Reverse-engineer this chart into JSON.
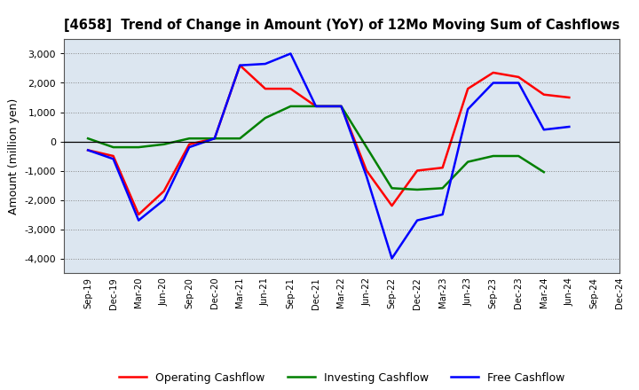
{
  "title": "[4658]  Trend of Change in Amount (YoY) of 12Mo Moving Sum of Cashflows",
  "ylabel": "Amount (million yen)",
  "xlabels": [
    "Sep-19",
    "Dec-19",
    "Mar-20",
    "Jun-20",
    "Sep-20",
    "Dec-20",
    "Mar-21",
    "Jun-21",
    "Sep-21",
    "Dec-21",
    "Mar-22",
    "Jun-22",
    "Sep-22",
    "Dec-22",
    "Mar-23",
    "Jun-23",
    "Sep-23",
    "Dec-23",
    "Mar-24",
    "Jun-24",
    "Sep-24",
    "Dec-24"
  ],
  "operating": [
    -300,
    -500,
    -2500,
    -1700,
    -100,
    100,
    2600,
    1800,
    1800,
    1200,
    1200,
    -1000,
    -2200,
    -1000,
    -900,
    1800,
    2350,
    2200,
    1600,
    1500,
    null,
    null
  ],
  "investing": [
    100,
    -200,
    -200,
    -100,
    100,
    100,
    100,
    800,
    1200,
    1200,
    1200,
    -200,
    -1600,
    -1650,
    -1600,
    -700,
    -500,
    -500,
    -1050,
    null,
    null,
    null
  ],
  "free": [
    -300,
    -600,
    -2700,
    -2000,
    -200,
    100,
    2600,
    2650,
    3000,
    1200,
    1200,
    -1200,
    -4000,
    -2700,
    -2500,
    1100,
    2000,
    2000,
    400,
    500,
    null,
    null
  ],
  "ylim": [
    -4500,
    3500
  ],
  "yticks": [
    -4000,
    -3000,
    -2000,
    -1000,
    0,
    1000,
    2000,
    3000
  ],
  "operating_color": "#ff0000",
  "investing_color": "#008000",
  "free_color": "#0000ff",
  "background_color": "#ffffff",
  "plot_bg_color": "#dce6f0",
  "grid_color": "#aaaaaa"
}
